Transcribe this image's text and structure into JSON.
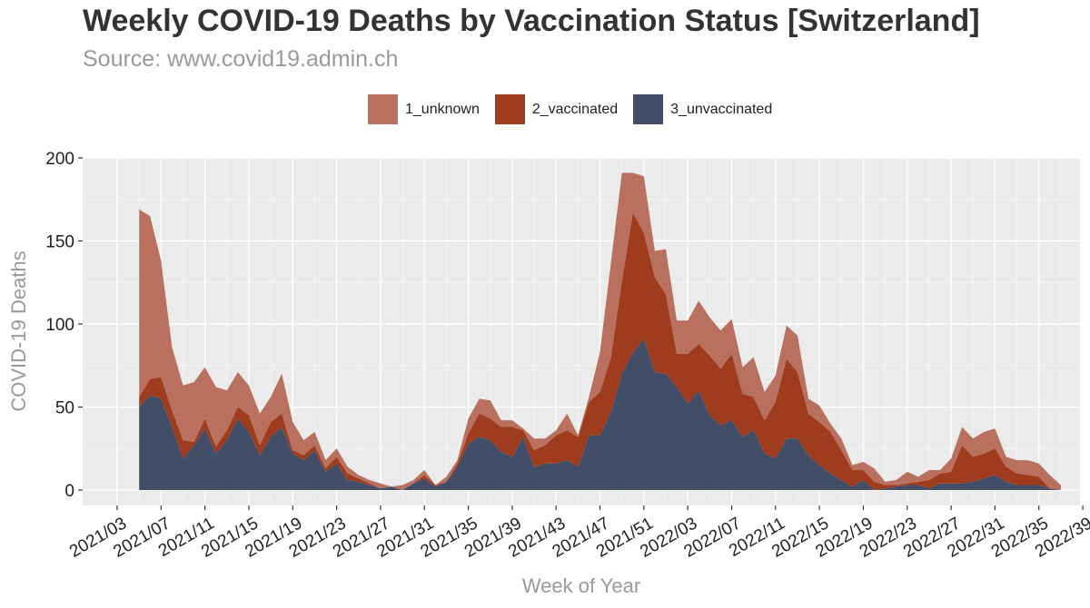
{
  "title": "Weekly COVID-19 Deaths by Vaccination Status [Switzerland]",
  "subtitle": "Source: www.covid19.admin.ch",
  "legend": [
    {
      "label": "1_unknown",
      "color": "#b9705e"
    },
    {
      "label": "2_vaccinated",
      "color": "#a03c1e"
    },
    {
      "label": "3_unvaccinated",
      "color": "#424d67"
    }
  ],
  "chart_data": {
    "type": "area",
    "stacked": true,
    "xlabel": "Week of Year",
    "ylabel": "COVID-19 Deaths",
    "ylim": [
      0,
      200
    ],
    "yticks": [
      0,
      50,
      100,
      150,
      200
    ],
    "x_start_week": "2021/05",
    "x_tick_labels": [
      "2021/03",
      "2021/07",
      "2021/11",
      "2021/15",
      "2021/19",
      "2021/23",
      "2021/27",
      "2021/31",
      "2021/35",
      "2021/39",
      "2021/43",
      "2021/47",
      "2021/51",
      "2022/03",
      "2022/07",
      "2022/11",
      "2022/15",
      "2022/19",
      "2022/23",
      "2022/27",
      "2022/31",
      "2022/35",
      "2022/39"
    ],
    "grid": true,
    "legend_position": "top",
    "series": [
      {
        "name": "3_unvaccinated",
        "color": "#424d67",
        "values": [
          50,
          57,
          55,
          38,
          19,
          27,
          37,
          22,
          30,
          43,
          35,
          21,
          32,
          38,
          22,
          18,
          24,
          11,
          16,
          6,
          5,
          3,
          1,
          2,
          0,
          4,
          7,
          2,
          5,
          14,
          28,
          32,
          30,
          23,
          20,
          32,
          14,
          16,
          16,
          18,
          14,
          33,
          33,
          47,
          70,
          83,
          91,
          71,
          70,
          62,
          52,
          60,
          45,
          39,
          42,
          32,
          36,
          22,
          19,
          31,
          31,
          21,
          15,
          10,
          6,
          2,
          6,
          0,
          1,
          2,
          3,
          3,
          1,
          4,
          4,
          4,
          5,
          7,
          9,
          5,
          3,
          3,
          3,
          1,
          0
        ]
      },
      {
        "name": "2_vaccinated",
        "color": "#a03c1e",
        "values": [
          6,
          10,
          13,
          10,
          11,
          2,
          6,
          4,
          6,
          7,
          10,
          6,
          9,
          8,
          2,
          3,
          3,
          2,
          4,
          4,
          2,
          1,
          0,
          0,
          0,
          0,
          2,
          1,
          0,
          2,
          6,
          14,
          13,
          15,
          18,
          4,
          10,
          11,
          17,
          18,
          18,
          20,
          26,
          33,
          56,
          84,
          64,
          57,
          48,
          20,
          30,
          28,
          36,
          34,
          40,
          26,
          20,
          20,
          34,
          48,
          40,
          25,
          26,
          25,
          18,
          10,
          6,
          5,
          2,
          1,
          1,
          2,
          5,
          6,
          7,
          23,
          15,
          15,
          16,
          9,
          7,
          6,
          5,
          0,
          0
        ]
      },
      {
        "name": "1_unknown",
        "color": "#b9705e",
        "values": [
          113,
          98,
          70,
          38,
          33,
          36,
          31,
          36,
          24,
          21,
          18,
          19,
          15,
          24,
          17,
          9,
          8,
          5,
          5,
          4,
          2,
          2,
          3,
          0,
          3,
          2,
          3,
          0,
          3,
          2,
          9,
          9,
          11,
          4,
          4,
          1,
          7,
          4,
          3,
          10,
          1,
          3,
          24,
          57,
          65,
          24,
          34,
          16,
          27,
          20,
          20,
          26,
          23,
          23,
          21,
          16,
          24,
          17,
          16,
          20,
          22,
          9,
          10,
          5,
          7,
          3,
          5,
          8,
          2,
          3,
          7,
          3,
          6,
          2,
          8,
          11,
          11,
          13,
          12,
          6,
          8,
          9,
          8,
          8,
          3
        ]
      }
    ]
  }
}
